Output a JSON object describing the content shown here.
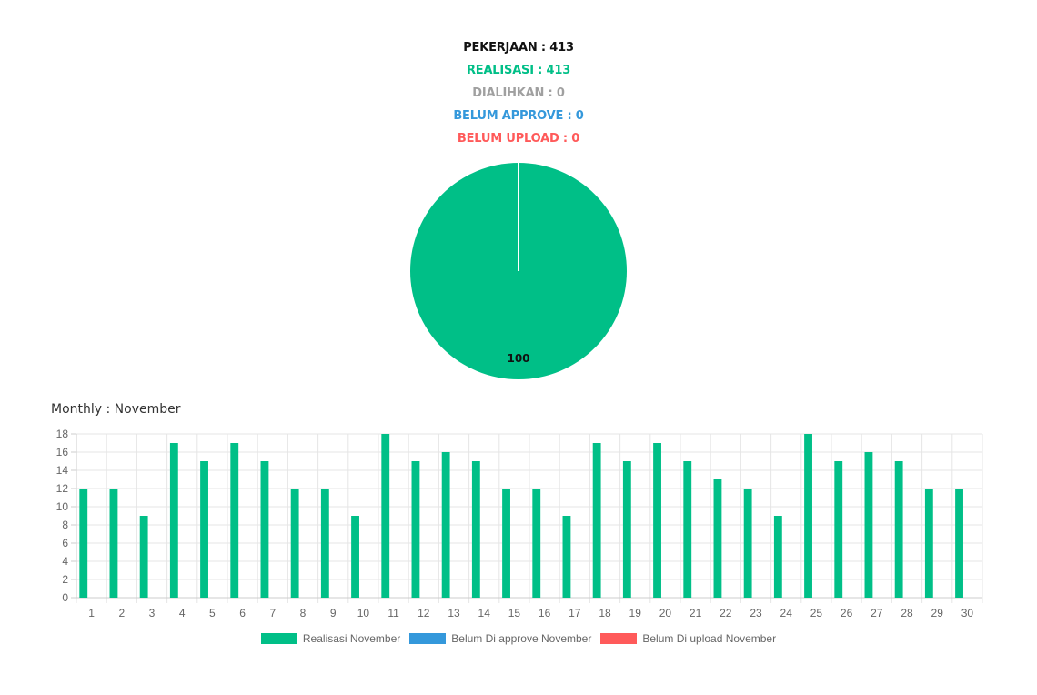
{
  "summary": {
    "pekerjaan": "PEKERJAAN : 413",
    "realisasi": "REALISASI : 413",
    "dialihkan": "DIALIHKAN : 0",
    "belum_approve": "BELUM APPROVE : 0",
    "belum_upload": "BELUM UPLOAD : 0"
  },
  "colors": {
    "black": "#111111",
    "green": "#00bf87",
    "gray": "#a0a0a0",
    "blue": "#3498db",
    "red": "#ff5a5a"
  },
  "monthly_title": "Monthly : November",
  "chart_data": [
    {
      "type": "pie",
      "slices": [
        {
          "name": "Realisasi",
          "value": 100,
          "color": "#00bf87"
        },
        {
          "name": "Belum Approve",
          "value": 0,
          "color": "#3498db"
        },
        {
          "name": "Belum Upload",
          "value": 0,
          "color": "#ff5a5a"
        }
      ],
      "data_label": "100"
    },
    {
      "type": "bar",
      "title": "Monthly : November",
      "categories": [
        "1",
        "2",
        "3",
        "4",
        "5",
        "6",
        "7",
        "8",
        "9",
        "10",
        "11",
        "12",
        "13",
        "14",
        "15",
        "16",
        "17",
        "18",
        "19",
        "20",
        "21",
        "22",
        "23",
        "24",
        "25",
        "26",
        "27",
        "28",
        "29",
        "30"
      ],
      "series": [
        {
          "name": "Realisasi November",
          "color": "#00bf87",
          "values": [
            12,
            12,
            9,
            17,
            15,
            17,
            15,
            12,
            12,
            9,
            18,
            15,
            16,
            15,
            12,
            12,
            9,
            17,
            15,
            17,
            15,
            13,
            12,
            9,
            18,
            15,
            16,
            15,
            12,
            12
          ]
        },
        {
          "name": "Belum Di approve November",
          "color": "#3498db",
          "values": [
            0,
            0,
            0,
            0,
            0,
            0,
            0,
            0,
            0,
            0,
            0,
            0,
            0,
            0,
            0,
            0,
            0,
            0,
            0,
            0,
            0,
            0,
            0,
            0,
            0,
            0,
            0,
            0,
            0,
            0
          ]
        },
        {
          "name": "Belum Di upload November",
          "color": "#ff5a5a",
          "values": [
            0,
            0,
            0,
            0,
            0,
            0,
            0,
            0,
            0,
            0,
            0,
            0,
            0,
            0,
            0,
            0,
            0,
            0,
            0,
            0,
            0,
            0,
            0,
            0,
            0,
            0,
            0,
            0,
            0,
            0
          ]
        }
      ],
      "ylim": [
        0,
        18
      ],
      "yticks": [
        0,
        2,
        4,
        6,
        8,
        10,
        12,
        14,
        16,
        18
      ],
      "grid": true,
      "legend_position": "bottom"
    }
  ]
}
